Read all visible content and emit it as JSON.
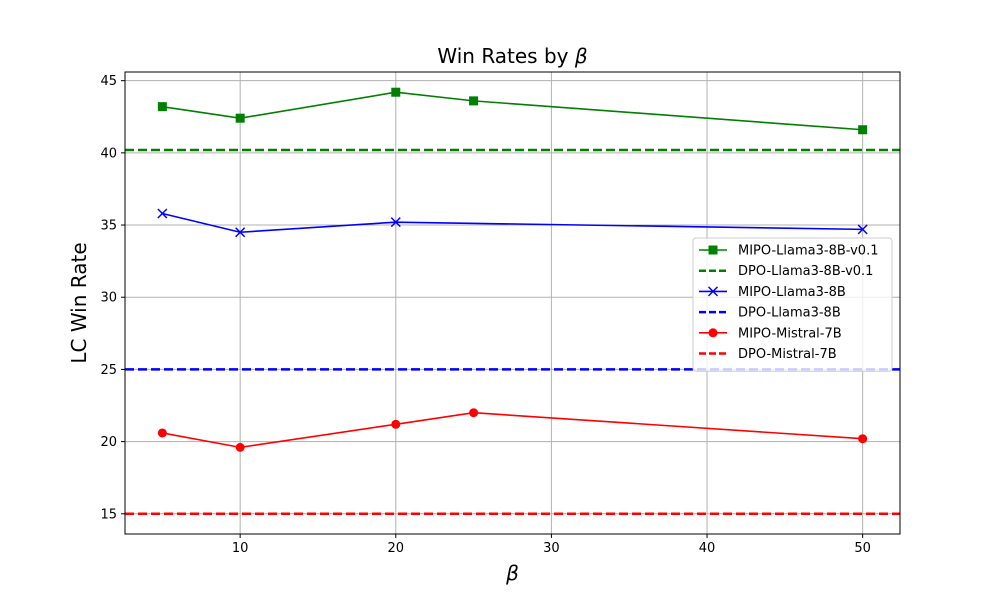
{
  "chart_data": {
    "type": "line",
    "title": "Win Rates by",
    "title_symbol": "β",
    "xlabel": "β",
    "ylabel": "LC Win Rate",
    "xlim": [
      2.6,
      52.4
    ],
    "ylim": [
      13.6,
      45.6
    ],
    "xticks": [
      10,
      20,
      30,
      40,
      50
    ],
    "yticks": [
      15,
      20,
      25,
      30,
      35,
      40,
      45
    ],
    "grid": true,
    "legend_position": "right",
    "series": [
      {
        "name": "MIPO-Llama3-8B-v0.1",
        "kind": "line",
        "marker": "square",
        "color": "#008000",
        "x": [
          5,
          10,
          20,
          25,
          50
        ],
        "y": [
          43.2,
          42.4,
          44.2,
          43.6,
          41.6
        ]
      },
      {
        "name": "DPO-Llama3-8B-v0.1",
        "kind": "hline",
        "color": "#008000",
        "y": 40.2
      },
      {
        "name": "MIPO-Llama3-8B",
        "kind": "line",
        "marker": "x",
        "color": "#0000ff",
        "x": [
          5,
          10,
          20,
          50
        ],
        "y": [
          35.8,
          34.5,
          35.2,
          34.7
        ]
      },
      {
        "name": "DPO-Llama3-8B",
        "kind": "hline",
        "color": "#0000ff",
        "y": 25.0
      },
      {
        "name": "MIPO-Mistral-7B",
        "kind": "line",
        "marker": "circle",
        "color": "#ff0000",
        "x": [
          5,
          10,
          20,
          25,
          50
        ],
        "y": [
          20.6,
          19.6,
          21.2,
          22.0,
          20.2
        ]
      },
      {
        "name": "DPO-Mistral-7B",
        "kind": "hline",
        "color": "#ff0000",
        "y": 15.0
      }
    ]
  }
}
